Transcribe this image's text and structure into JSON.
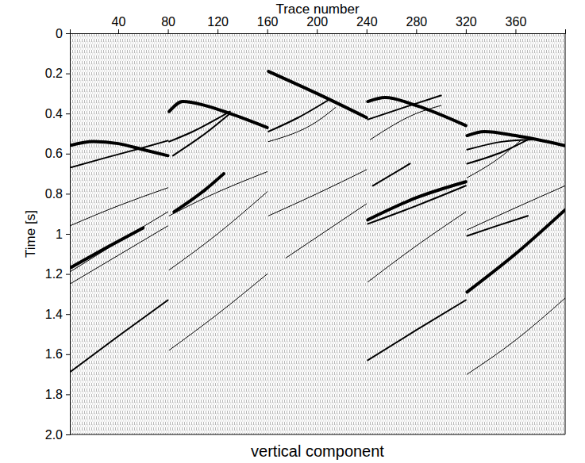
{
  "chart_data": {
    "type": "line",
    "title": "vertical component",
    "xlabel": "Trace number",
    "ylabel": "Time [s]",
    "color": "#000000",
    "xlim": [
      1,
      400
    ],
    "xticks": [
      40,
      80,
      120,
      160,
      200,
      240,
      280,
      320,
      360
    ],
    "ylim": [
      0,
      2
    ],
    "yticks": [
      0,
      0.2,
      0.4,
      0.6,
      0.8,
      1,
      1.2,
      1.4,
      1.6,
      1.8,
      {
        "value": 2,
        "label": "2.0"
      }
    ],
    "series": [
      {
        "x": [
          1,
          20,
          40,
          60,
          80
        ],
        "values": [
          0.56,
          0.54,
          0.55,
          0.58,
          0.61
        ],
        "line_style": "thick"
      },
      {
        "x": [
          1,
          30,
          60,
          80
        ],
        "values": [
          0.67,
          0.62,
          0.57,
          0.535
        ],
        "line_style": "medium"
      },
      {
        "x": [
          1,
          40,
          80
        ],
        "values": [
          0.96,
          0.86,
          0.77
        ],
        "line_style": "thin"
      },
      {
        "x": [
          1,
          30,
          60
        ],
        "values": [
          1.17,
          1.07,
          0.97
        ],
        "line_style": "thick"
      },
      {
        "x": [
          1,
          40,
          80
        ],
        "values": [
          1.19,
          1.04,
          0.89
        ],
        "line_style": "thin"
      },
      {
        "x": [
          1,
          80
        ],
        "values": [
          1.25,
          0.96
        ],
        "line_style": "thin"
      },
      {
        "x": [
          1,
          40,
          80
        ],
        "values": [
          1.69,
          1.51,
          1.33
        ],
        "line_style": "medium"
      },
      {
        "x": [
          81,
          92,
          110,
          130,
          160
        ],
        "values": [
          0.39,
          0.34,
          0.36,
          0.4,
          0.47
        ],
        "line_style": "thick"
      },
      {
        "x": [
          81,
          100,
          130
        ],
        "values": [
          0.54,
          0.49,
          0.39
        ],
        "line_style": "medium"
      },
      {
        "x": [
          84,
          110,
          130
        ],
        "values": [
          0.61,
          0.5,
          0.4
        ],
        "line_style": "medium"
      },
      {
        "x": [
          81,
          110,
          160
        ],
        "values": [
          0.91,
          0.82,
          0.69
        ],
        "line_style": "thin"
      },
      {
        "x": [
          85,
          110,
          125
        ],
        "values": [
          0.89,
          0.78,
          0.7
        ],
        "line_style": "thick"
      },
      {
        "x": [
          81,
          120,
          160
        ],
        "values": [
          1.18,
          1.0,
          0.79
        ],
        "line_style": "thin"
      },
      {
        "x": [
          81,
          120,
          160
        ],
        "values": [
          1.58,
          1.4,
          1.2
        ],
        "line_style": "thin"
      },
      {
        "x": [
          161,
          200,
          240
        ],
        "values": [
          0.19,
          0.3,
          0.42
        ],
        "line_style": "thick"
      },
      {
        "x": [
          161,
          185,
          210
        ],
        "values": [
          0.49,
          0.42,
          0.33
        ],
        "line_style": "medium"
      },
      {
        "x": [
          161,
          200,
          215
        ],
        "values": [
          0.54,
          0.44,
          0.37
        ],
        "line_style": "thin"
      },
      {
        "x": [
          161,
          200,
          240
        ],
        "values": [
          0.91,
          0.8,
          0.68
        ],
        "line_style": "thin"
      },
      {
        "x": [
          175,
          240
        ],
        "values": [
          1.12,
          0.85
        ],
        "line_style": "thin"
      },
      {
        "x": [
          241,
          255,
          280,
          320
        ],
        "values": [
          0.34,
          0.32,
          0.36,
          0.46
        ],
        "line_style": "thick"
      },
      {
        "x": [
          241,
          270,
          300
        ],
        "values": [
          0.43,
          0.37,
          0.31
        ],
        "line_style": "medium"
      },
      {
        "x": [
          243,
          280,
          300
        ],
        "values": [
          0.53,
          0.4,
          0.36
        ],
        "line_style": "thin"
      },
      {
        "x": [
          245,
          275
        ],
        "values": [
          0.76,
          0.65
        ],
        "line_style": "medium"
      },
      {
        "x": [
          241,
          280,
          320
        ],
        "values": [
          0.93,
          0.82,
          0.74
        ],
        "line_style": "thick"
      },
      {
        "x": [
          241,
          280,
          320
        ],
        "values": [
          0.95,
          0.86,
          0.76
        ],
        "line_style": "medium"
      },
      {
        "x": [
          241,
          280,
          320
        ],
        "values": [
          1.24,
          1.06,
          0.89
        ],
        "line_style": "thin"
      },
      {
        "x": [
          241,
          280,
          320
        ],
        "values": [
          1.63,
          1.48,
          1.33
        ],
        "line_style": "medium"
      },
      {
        "x": [
          321,
          335,
          360,
          400
        ],
        "values": [
          0.51,
          0.49,
          0.51,
          0.56
        ],
        "line_style": "thick"
      },
      {
        "x": [
          321,
          350,
          375
        ],
        "values": [
          0.58,
          0.54,
          0.53
        ],
        "line_style": "medium"
      },
      {
        "x": [
          321,
          350,
          370
        ],
        "values": [
          0.65,
          0.59,
          0.53
        ],
        "line_style": "medium"
      },
      {
        "x": [
          321,
          345,
          365
        ],
        "values": [
          0.72,
          0.63,
          0.53
        ],
        "line_style": "thin"
      },
      {
        "x": [
          321,
          360,
          400
        ],
        "values": [
          0.98,
          0.87,
          0.76
        ],
        "line_style": "thin"
      },
      {
        "x": [
          321,
          345,
          370
        ],
        "values": [
          1.01,
          0.96,
          0.91
        ],
        "line_style": "medium"
      },
      {
        "x": [
          321,
          360,
          400
        ],
        "values": [
          1.29,
          1.1,
          0.88
        ],
        "line_style": "thick"
      },
      {
        "x": [
          321,
          360,
          400
        ],
        "values": [
          1.7,
          1.53,
          1.32
        ],
        "line_style": "thin"
      }
    ]
  }
}
